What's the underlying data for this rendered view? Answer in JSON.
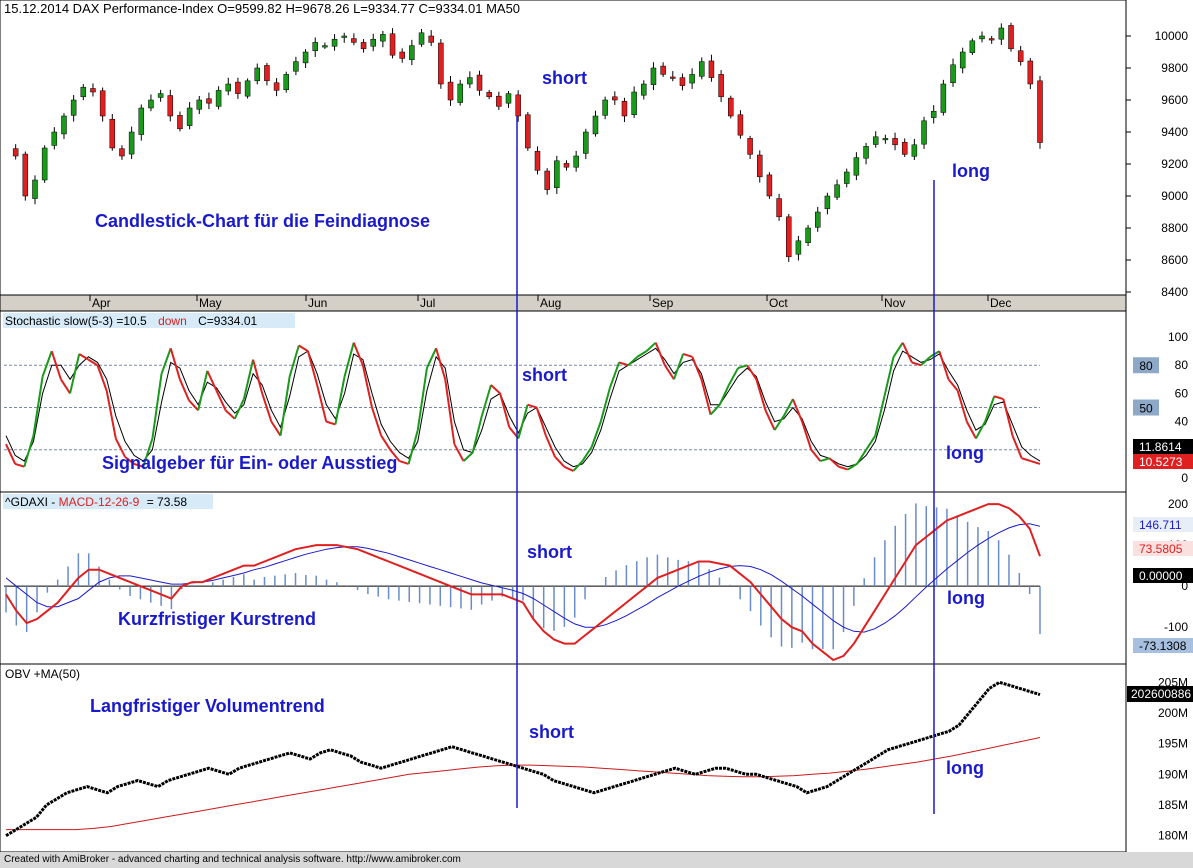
{
  "header": {
    "title": "15.12.2014 DAX Performance-Index  O=9599.82  H=9678.26  L=9334.77  C=9334.01    MA50"
  },
  "annotations": {
    "main": "Candlestick-Chart für die Feindiagnose",
    "stoch": "Signalgeber für Ein- oder Ausstieg",
    "macd": "Kurzfristiger Kurstrend",
    "obv": "Langfristiger Volumentrend",
    "short": "short",
    "long": "long"
  },
  "footer": "Created with AmiBroker - advanced charting and technical analysis software. http://www.amibroker.com",
  "colors": {
    "up": "#1a9a1a",
    "down": "#e02020",
    "signal_text": "#1a1acc",
    "vline": "#1a1acc"
  },
  "chart_data": [
    {
      "type": "candlestick",
      "name": "DAX Performance-Index",
      "months": [
        "Apr",
        "May",
        "Jun",
        "Jul",
        "Aug",
        "Sep",
        "Oct",
        "Nov",
        "Dec"
      ],
      "y_ticks": [
        "8400",
        "8600",
        "8800",
        "9000",
        "9200",
        "9400",
        "9600",
        "9800",
        "10000"
      ],
      "ylim": [
        8400,
        10100
      ],
      "close_path": [
        9300,
        9250,
        9000,
        9100,
        9300,
        9400,
        9500,
        9600,
        9680,
        9650,
        9500,
        9300,
        9250,
        9400,
        9550,
        9600,
        9640,
        9500,
        9420,
        9550,
        9600,
        9580,
        9660,
        9700,
        9640,
        9720,
        9800,
        9720,
        9660,
        9760,
        9840,
        9900,
        9960,
        9940,
        9980,
        10000,
        9960,
        9920,
        9980,
        10010,
        9880,
        9860,
        9940,
        10020,
        9960,
        9700,
        9600,
        9700,
        9740,
        9660,
        9620,
        9560,
        9640,
        9500,
        9300,
        9160,
        9040,
        9220,
        9180,
        9250,
        9400,
        9500,
        9600,
        9600,
        9500,
        9650,
        9700,
        9800,
        9760,
        9740,
        9690,
        9760,
        9840,
        9740,
        9620,
        9500,
        9380,
        9260,
        9120,
        9000,
        8870,
        8620,
        8720,
        8800,
        8900,
        9000,
        9070,
        9150,
        9240,
        9310,
        9370,
        9360,
        9320,
        9260,
        9320,
        9470,
        9530,
        9700,
        9820,
        9900,
        9970,
        10000,
        9980,
        10050,
        9920,
        9840,
        9700,
        9334
      ],
      "last": {
        "O": 9599.82,
        "H": 9678.26,
        "L": 9334.77,
        "C": 9334.01
      }
    },
    {
      "type": "line",
      "name": "Stochastic slow(5-3)",
      "label": "Stochastic slow(5-3) =10.5",
      "label_down": "down",
      "label_c": "C=9334.01",
      "y_ticks": [
        "0",
        "20",
        "40",
        "60",
        "80",
        "100"
      ],
      "ylim": [
        0,
        105
      ],
      "levels": [
        "20",
        "50",
        "80"
      ],
      "last_values": [
        "11.8614",
        "10.5273"
      ],
      "k": [
        24,
        10,
        8,
        30,
        72,
        90,
        70,
        60,
        88,
        84,
        80,
        62,
        28,
        15,
        10,
        8,
        28,
        74,
        92,
        70,
        55,
        48,
        76,
        62,
        48,
        42,
        56,
        84,
        60,
        40,
        30,
        72,
        94,
        90,
        66,
        40,
        38,
        72,
        96,
        80,
        50,
        30,
        20,
        12,
        10,
        34,
        78,
        92,
        70,
        24,
        12,
        18,
        44,
        66,
        60,
        36,
        28,
        52,
        50,
        30,
        15,
        8,
        5,
        12,
        22,
        40,
        64,
        82,
        80,
        86,
        90,
        96,
        80,
        70,
        88,
        86,
        70,
        45,
        52,
        66,
        78,
        80,
        70,
        48,
        34,
        44,
        56,
        40,
        20,
        12,
        14,
        8,
        6,
        10,
        20,
        30,
        58,
        86,
        96,
        82,
        80,
        86,
        90,
        70,
        62,
        40,
        28,
        40,
        58,
        56,
        30,
        14,
        12,
        10
      ],
      "d": [
        30,
        16,
        12,
        26,
        60,
        80,
        80,
        70,
        80,
        86,
        82,
        70,
        44,
        26,
        16,
        12,
        20,
        54,
        82,
        78,
        62,
        52,
        68,
        64,
        54,
        46,
        52,
        74,
        66,
        48,
        36,
        58,
        86,
        90,
        74,
        52,
        42,
        60,
        88,
        84,
        60,
        38,
        26,
        18,
        14,
        26,
        62,
        86,
        78,
        40,
        20,
        18,
        34,
        56,
        60,
        44,
        32,
        46,
        50,
        36,
        22,
        12,
        8,
        10,
        18,
        34,
        56,
        76,
        80,
        84,
        88,
        92,
        84,
        74,
        82,
        84,
        74,
        52,
        52,
        62,
        72,
        78,
        72,
        54,
        40,
        42,
        50,
        42,
        26,
        16,
        14,
        10,
        8,
        10,
        16,
        26,
        48,
        76,
        90,
        86,
        82,
        84,
        88,
        76,
        66,
        48,
        34,
        38,
        52,
        54,
        38,
        22,
        16,
        12
      ]
    },
    {
      "type": "line",
      "name": "MACD-12-26-9",
      "label_prefix": "^GDAXI - ",
      "label_name": "MACD-12-26-9",
      "label_value": "= 73.58",
      "y_ticks": [
        "-100",
        "0",
        "100",
        "200"
      ],
      "ylim": [
        -180,
        210
      ],
      "last_values": [
        "146.711",
        "73.5805",
        "0.00000",
        "-73.1308"
      ],
      "macd": [
        -20,
        -60,
        -90,
        -80,
        -60,
        -40,
        -10,
        20,
        40,
        40,
        30,
        20,
        10,
        0,
        -10,
        -20,
        -30,
        0,
        10,
        10,
        20,
        30,
        40,
        50,
        50,
        60,
        70,
        80,
        90,
        95,
        100,
        100,
        100,
        95,
        90,
        80,
        70,
        60,
        50,
        40,
        30,
        20,
        10,
        0,
        -10,
        -20,
        -20,
        -20,
        -20,
        -30,
        -40,
        -80,
        -110,
        -130,
        -140,
        -140,
        -120,
        -100,
        -80,
        -60,
        -40,
        -20,
        0,
        20,
        30,
        40,
        50,
        60,
        60,
        55,
        50,
        30,
        10,
        -20,
        -50,
        -80,
        -100,
        -110,
        -140,
        -160,
        -180,
        -170,
        -140,
        -100,
        -60,
        -20,
        20,
        60,
        100,
        120,
        140,
        160,
        170,
        180,
        190,
        200,
        200,
        190,
        170,
        140,
        73
      ],
      "signal": [
        20,
        0,
        -20,
        -40,
        -50,
        -50,
        -40,
        -30,
        -10,
        10,
        20,
        25,
        25,
        20,
        15,
        10,
        5,
        5,
        8,
        10,
        14,
        20,
        26,
        32,
        40,
        46,
        54,
        62,
        70,
        78,
        84,
        90,
        94,
        96,
        96,
        92,
        86,
        80,
        72,
        64,
        56,
        48,
        40,
        32,
        24,
        16,
        8,
        2,
        -4,
        -10,
        -18,
        -30,
        -46,
        -62,
        -78,
        -92,
        -100,
        -100,
        -94,
        -84,
        -72,
        -58,
        -44,
        -28,
        -14,
        0,
        12,
        24,
        34,
        42,
        48,
        50,
        48,
        40,
        28,
        12,
        -6,
        -24,
        -44,
        -64,
        -84,
        -100,
        -110,
        -112,
        -104,
        -90,
        -72,
        -50,
        -26,
        -2,
        20,
        42,
        62,
        82,
        100,
        116,
        130,
        142,
        150,
        152,
        146
      ],
      "hist_note": "histogram bars = macd - signal"
    },
    {
      "type": "line",
      "name": "OBV +MA(50)",
      "label": "OBV +MA(50)",
      "y_ticks": [
        "180M",
        "185M",
        "190M",
        "195M",
        "200M",
        "205M"
      ],
      "ylim": [
        178,
        207
      ],
      "last_value": "202600886",
      "obv": [
        180,
        181,
        182,
        183,
        185,
        186,
        187,
        187.5,
        188,
        187.5,
        187,
        188,
        188.5,
        189,
        188.5,
        188,
        189,
        189.5,
        190,
        190.5,
        191,
        190.5,
        190,
        191,
        191.5,
        192,
        192.5,
        193,
        193.5,
        193,
        192.5,
        193.5,
        194,
        193.5,
        193,
        192,
        191.5,
        191,
        191.5,
        192,
        192.5,
        193,
        193.5,
        194,
        194.5,
        194,
        193.5,
        193,
        192.5,
        192,
        191.5,
        191,
        190.5,
        190,
        189,
        188.5,
        188,
        187.5,
        187,
        187.5,
        188,
        188.5,
        189,
        189.5,
        190,
        190.5,
        191,
        190.5,
        190,
        190.5,
        191,
        191,
        190.5,
        190,
        190,
        189.5,
        189,
        188.5,
        188,
        187,
        187.5,
        188,
        189,
        190,
        191,
        192,
        193,
        194,
        194.5,
        195,
        195.5,
        196,
        196.5,
        197,
        198,
        200,
        202,
        204,
        205,
        204.5,
        204,
        203.5,
        203
      ],
      "ma": [
        181,
        181,
        181,
        181,
        181,
        181.2,
        181.5,
        182,
        182.5,
        183,
        183.5,
        184,
        184.5,
        185,
        185.5,
        186,
        186.5,
        187,
        187.5,
        188,
        188.5,
        189,
        189.5,
        190,
        190.3,
        190.6,
        190.9,
        191.2,
        191.4,
        191.5,
        191.5,
        191.4,
        191.3,
        191.2,
        191,
        190.8,
        190.6,
        190.4,
        190.2,
        190,
        189.8,
        189.7,
        189.6,
        189.6,
        189.7,
        189.8,
        190,
        190.2,
        190.5,
        190.8,
        191.2,
        191.6,
        192,
        192.5,
        193,
        193.6,
        194.2,
        194.8,
        195.4,
        196
      ]
    }
  ]
}
